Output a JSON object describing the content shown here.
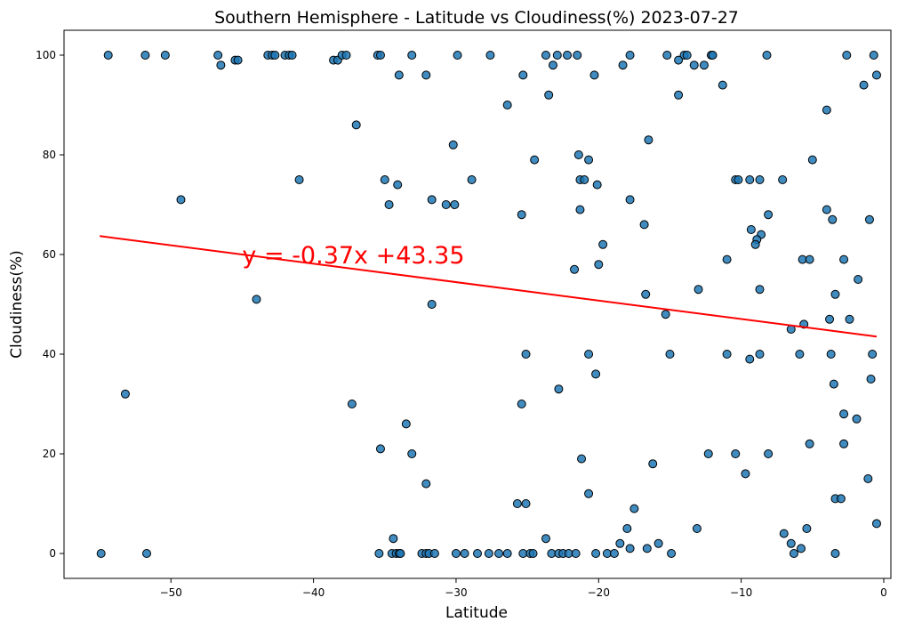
{
  "chart_data": {
    "type": "scatter",
    "title": "Southern Hemisphere - Latitude vs Cloudiness(%) 2023-07-27",
    "xlabel": "Latitude",
    "ylabel": "Cloudiness(%)",
    "xlim": [
      -57.5,
      0.5
    ],
    "ylim": [
      -5,
      105
    ],
    "xticks": [
      -50,
      -40,
      -30,
      -20,
      -10,
      0
    ],
    "yticks": [
      0,
      20,
      40,
      60,
      80,
      100
    ],
    "grid": false,
    "marker_color": "#1f77b4",
    "regression": {
      "equation": "y = -0.37x +43.35",
      "slope": -0.37,
      "intercept": 43.35,
      "x_range": [
        -55,
        -0.5
      ],
      "color": "#ff0000",
      "label_at": [
        -45,
        60
      ]
    },
    "points": [
      [
        -54.4,
        100
      ],
      [
        -51.8,
        100
      ],
      [
        -50.4,
        100
      ],
      [
        -46.7,
        100
      ],
      [
        -45.5,
        99
      ],
      [
        -45.3,
        99
      ],
      [
        -43.2,
        100
      ],
      [
        -42.9,
        100
      ],
      [
        -42.7,
        100
      ],
      [
        -42,
        100
      ],
      [
        -41.7,
        100
      ],
      [
        -41.5,
        100
      ],
      [
        -38.6,
        99
      ],
      [
        -38.3,
        99
      ],
      [
        -38,
        100
      ],
      [
        -37.7,
        100
      ],
      [
        -35.5,
        100
      ],
      [
        -35.3,
        100
      ],
      [
        -33.1,
        100
      ],
      [
        -29.9,
        100
      ],
      [
        -27.6,
        100
      ],
      [
        -23.7,
        100
      ],
      [
        -22.9,
        100
      ],
      [
        -22.2,
        100
      ],
      [
        -21.5,
        100
      ],
      [
        -17.8,
        100
      ],
      [
        -15.2,
        100
      ],
      [
        -14,
        100
      ],
      [
        -13.8,
        100
      ],
      [
        -12.1,
        100
      ],
      [
        -12,
        100
      ],
      [
        -8.2,
        100
      ],
      [
        -2.6,
        100
      ],
      [
        -0.7,
        100
      ],
      [
        -46.5,
        98
      ],
      [
        -23.2,
        98
      ],
      [
        -18.3,
        98
      ],
      [
        -13.3,
        98
      ],
      [
        -12.6,
        98
      ],
      [
        -34,
        96
      ],
      [
        -32.1,
        96
      ],
      [
        -25.3,
        96
      ],
      [
        -20.3,
        96
      ],
      [
        -0.5,
        96
      ],
      [
        -23.5,
        92
      ],
      [
        -14.4,
        92
      ],
      [
        -14.4,
        99
      ],
      [
        -11.3,
        94
      ],
      [
        -1.4,
        94
      ],
      [
        -26.4,
        90
      ],
      [
        -4,
        89
      ],
      [
        -37,
        86
      ],
      [
        -16.5,
        83
      ],
      [
        -30.2,
        82
      ],
      [
        -21.4,
        80
      ],
      [
        -24.5,
        79
      ],
      [
        -20.7,
        79
      ],
      [
        -5,
        79
      ],
      [
        -41,
        75
      ],
      [
        -35,
        75
      ],
      [
        -28.9,
        75
      ],
      [
        -21.3,
        75
      ],
      [
        -21,
        75
      ],
      [
        -10.4,
        75
      ],
      [
        -10.2,
        75
      ],
      [
        -9.4,
        75
      ],
      [
        -8.7,
        75
      ],
      [
        -7.1,
        75
      ],
      [
        -34.1,
        74
      ],
      [
        -20.1,
        74
      ],
      [
        -49.3,
        71
      ],
      [
        -31.7,
        71
      ],
      [
        -17.8,
        71
      ],
      [
        -34.7,
        70
      ],
      [
        -30.7,
        70
      ],
      [
        -30.1,
        70
      ],
      [
        -21.3,
        69
      ],
      [
        -4,
        69
      ],
      [
        -25.4,
        68
      ],
      [
        -8.1,
        68
      ],
      [
        -3.6,
        67
      ],
      [
        -1,
        67
      ],
      [
        -16.8,
        66
      ],
      [
        -9.3,
        65
      ],
      [
        -8.6,
        64
      ],
      [
        -8.9,
        63
      ],
      [
        -19.7,
        62
      ],
      [
        -9,
        62
      ],
      [
        -11,
        59
      ],
      [
        -5.7,
        59
      ],
      [
        -5.2,
        59
      ],
      [
        -2.8,
        59
      ],
      [
        -20,
        58
      ],
      [
        -21.7,
        57
      ],
      [
        -1.8,
        55
      ],
      [
        -13,
        53
      ],
      [
        -8.7,
        53
      ],
      [
        -16.7,
        52
      ],
      [
        -3.4,
        52
      ],
      [
        -44,
        51
      ],
      [
        -31.7,
        50
      ],
      [
        -15.3,
        48
      ],
      [
        -3.8,
        47
      ],
      [
        -2.4,
        47
      ],
      [
        -5.6,
        46
      ],
      [
        -6.5,
        45
      ],
      [
        -25.1,
        40
      ],
      [
        -20.7,
        40
      ],
      [
        -15,
        40
      ],
      [
        -11,
        40
      ],
      [
        -8.7,
        40
      ],
      [
        -5.9,
        40
      ],
      [
        -3.7,
        40
      ],
      [
        -0.8,
        40
      ],
      [
        -9.4,
        39
      ],
      [
        -20.2,
        36
      ],
      [
        -0.9,
        35
      ],
      [
        -3.5,
        34
      ],
      [
        -22.8,
        33
      ],
      [
        -53.2,
        32
      ],
      [
        -37.3,
        30
      ],
      [
        -25.4,
        30
      ],
      [
        -2.8,
        28
      ],
      [
        -1.9,
        27
      ],
      [
        -33.5,
        26
      ],
      [
        -2.8,
        22
      ],
      [
        -5.2,
        22
      ],
      [
        -35.3,
        21
      ],
      [
        -33.1,
        20
      ],
      [
        -12.3,
        20
      ],
      [
        -10.4,
        20
      ],
      [
        -8.1,
        20
      ],
      [
        -21.2,
        19
      ],
      [
        -16.2,
        18
      ],
      [
        -9.7,
        16
      ],
      [
        -1.1,
        15
      ],
      [
        -32.1,
        14
      ],
      [
        -20.7,
        12
      ],
      [
        -3.4,
        11
      ],
      [
        -3,
        11
      ],
      [
        -25.7,
        10
      ],
      [
        -25.1,
        10
      ],
      [
        -17.5,
        9
      ],
      [
        -0.5,
        6
      ],
      [
        -18,
        5
      ],
      [
        -13.1,
        5
      ],
      [
        -5.4,
        5
      ],
      [
        -7,
        4
      ],
      [
        -34.4,
        3
      ],
      [
        -23.7,
        3
      ],
      [
        -18.5,
        2
      ],
      [
        -15.8,
        2
      ],
      [
        -6.5,
        2
      ],
      [
        -17.8,
        1
      ],
      [
        -16.6,
        1
      ],
      [
        -5.8,
        1
      ],
      [
        -54.9,
        0
      ],
      [
        -51.7,
        0
      ],
      [
        -35.4,
        0
      ],
      [
        -34.5,
        0
      ],
      [
        -34.2,
        0
      ],
      [
        -34,
        0
      ],
      [
        -33.9,
        0
      ],
      [
        -32.4,
        0
      ],
      [
        -32.1,
        0
      ],
      [
        -31.9,
        0
      ],
      [
        -31.5,
        0
      ],
      [
        -30,
        0
      ],
      [
        -29.4,
        0
      ],
      [
        -28.5,
        0
      ],
      [
        -27.7,
        0
      ],
      [
        -27,
        0
      ],
      [
        -26.4,
        0
      ],
      [
        -25.3,
        0
      ],
      [
        -24.8,
        0
      ],
      [
        -24.6,
        0
      ],
      [
        -23.3,
        0
      ],
      [
        -22.8,
        0
      ],
      [
        -22.5,
        0
      ],
      [
        -22.1,
        0
      ],
      [
        -21.6,
        0
      ],
      [
        -20.2,
        0
      ],
      [
        -19.4,
        0
      ],
      [
        -18.9,
        0
      ],
      [
        -14.9,
        0
      ],
      [
        -6.3,
        0
      ],
      [
        -3.4,
        0
      ]
    ]
  }
}
